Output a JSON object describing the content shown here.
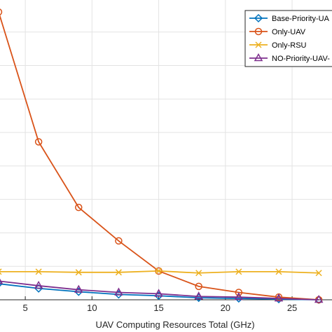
{
  "chart_data": {
    "type": "line",
    "xlabel": "UAV Computing Resources Total (GHz)",
    "ylabel": "",
    "title": "",
    "xlim": [
      3.0,
      28.2
    ],
    "ylim": [
      0,
      22.5
    ],
    "xticks": [
      5,
      10,
      15,
      20,
      25
    ],
    "tick_labels": [
      "5",
      "10",
      "15",
      "20",
      "25"
    ],
    "yticks": [
      2.5,
      5,
      7.5,
      10,
      12.5,
      15,
      17.5,
      20,
      22.5
    ],
    "grid": true,
    "legend_placement": "top-right",
    "x": [
      3,
      6,
      9,
      12,
      15,
      18,
      21,
      24,
      27
    ],
    "series": [
      {
        "name": "Base-Priority-UA",
        "color": "#0072BD",
        "marker": "diamond",
        "values": [
          1.2,
          0.85,
          0.6,
          0.4,
          0.3,
          0.15,
          0.1,
          0.05,
          0.0
        ]
      },
      {
        "name": "Only-UAV",
        "color": "#D95319",
        "marker": "circle",
        "values": [
          21.5,
          11.8,
          6.9,
          4.4,
          2.15,
          1.0,
          0.55,
          0.2,
          0.0
        ]
      },
      {
        "name": "Only-RSU",
        "color": "#EDB120",
        "marker": "x",
        "values": [
          2.1,
          2.1,
          2.05,
          2.05,
          2.15,
          2.0,
          2.1,
          2.1,
          2.0
        ]
      },
      {
        "name": "NO-Priority-UAV-",
        "color": "#7E2F8E",
        "marker": "triangle",
        "values": [
          1.4,
          1.05,
          0.75,
          0.55,
          0.45,
          0.25,
          0.2,
          0.1,
          0.0
        ]
      }
    ]
  }
}
